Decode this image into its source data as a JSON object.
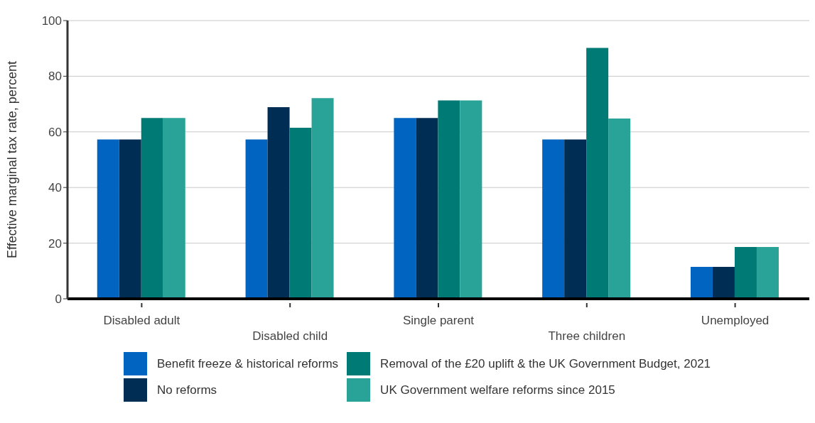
{
  "chart_data": {
    "type": "bar",
    "ylabel": "Effective marginal tax rate, percent",
    "categories": [
      "Disabled adult",
      "Disabled child",
      "Single parent",
      "Three children",
      "Unemployed"
    ],
    "series": [
      {
        "name": "Benefit freeze & historical reforms",
        "color": "#0064c0",
        "values": [
          57.3,
          57.3,
          65,
          57.3,
          11.5
        ]
      },
      {
        "name": "No reforms",
        "color": "#002d54",
        "values": [
          57.3,
          68.9,
          65,
          57.3,
          11.5
        ]
      },
      {
        "name": "Removal of the £20 uplift & the UK Government Budget, 2021",
        "color": "#007a74",
        "values": [
          65,
          61.5,
          71.3,
          90.2,
          18.6
        ]
      },
      {
        "name": "UK Government welfare reforms since 2015",
        "color": "#29a397",
        "values": [
          65,
          72.1,
          71.3,
          64.8,
          18.6
        ]
      }
    ],
    "ylim": [
      0,
      100
    ],
    "yticks": [
      0,
      20,
      40,
      60,
      80,
      100
    ],
    "grid": "y",
    "legend": "bottom"
  }
}
